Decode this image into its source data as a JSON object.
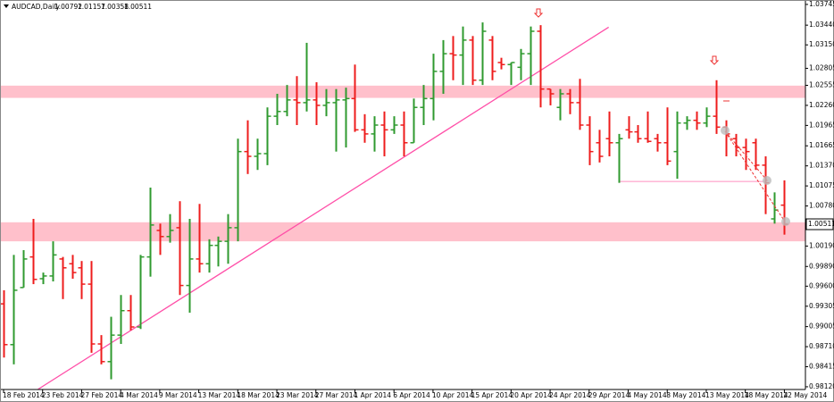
{
  "chart_data": {
    "type": "ohlc",
    "title": "AUDCAD,Daily",
    "categories": [
      "18 Feb 2014",
      null,
      null,
      null,
      "23 Feb 2014",
      null,
      null,
      null,
      "27 Feb 2014",
      null,
      null,
      null,
      "4 Mar 2014",
      null,
      null,
      null,
      "9 Mar 2014",
      null,
      null,
      null,
      "13 Mar 2014",
      null,
      null,
      null,
      "18 Mar 2014",
      null,
      null,
      null,
      "23 Mar 2014",
      null,
      null,
      null,
      "27 Mar 2014",
      null,
      null,
      null,
      "1 Apr 2014",
      null,
      null,
      null,
      "6 Apr 2014",
      null,
      null,
      null,
      "10 Apr 2014",
      null,
      null,
      null,
      "15 Apr 2014",
      null,
      null,
      null,
      "20 Apr 2014",
      null,
      null,
      null,
      "24 Apr 2014",
      null,
      null,
      null,
      "29 Apr 2014",
      null,
      null,
      null,
      "4 May 2014",
      null,
      null,
      null,
      "8 May 2014",
      null,
      null,
      null,
      "13 May 2014",
      null,
      null,
      null,
      "18 May 2014",
      null,
      null,
      null,
      "22 May 2014"
    ],
    "open": [
      0.9934,
      0.9874,
      0.9958,
      1.0003,
      0.9971,
      0.9975,
      1.0,
      0.9993,
      0.9987,
      0.9963,
      0.9875,
      0.9849,
      0.9888,
      0.9924,
      0.99,
      1.0003,
      1.0042,
      1.0033,
      1.0046,
      0.9961,
      1.0,
      0.9993,
      1.002,
      1.0026,
      1.0046,
      1.0158,
      1.0151,
      1.0155,
      1.021,
      1.0217,
      1.0234,
      1.023,
      1.0234,
      1.0226,
      1.023,
      1.0234,
      1.0236,
      1.019,
      1.0184,
      1.0197,
      1.019,
      1.0197,
      1.0171,
      1.0223,
      1.0236,
      1.0276,
      1.0302,
      1.03,
      1.0322,
      1.0263,
      1.0322,
      1.0289,
      1.0286,
      1.0282,
      1.0302,
      1.0335,
      1.025,
      1.0223,
      1.0243,
      1.023,
      1.0197,
      1.0171,
      1.0177,
      1.0171,
      1.019,
      1.0187,
      1.0177,
      1.0177,
      1.0171,
      1.0158,
      1.02,
      1.0204,
      1.02,
      1.021,
      1.0194,
      1.0177,
      1.0164,
      1.0171,
      1.0138,
      1.0059,
      1.00792
    ],
    "high": [
      0.9954,
      1.0006,
      1.0013,
      1.0059,
      0.998,
      1.0026,
      1.0003,
      1.0006,
      0.9997,
      0.9997,
      0.9888,
      0.9915,
      0.9947,
      0.9947,
      1.0006,
      1.0105,
      1.0052,
      1.0066,
      1.0085,
      1.0059,
      1.0081,
      1.0029,
      1.0033,
      1.0066,
      1.0177,
      1.0204,
      1.0177,
      1.0223,
      1.0243,
      1.0256,
      1.0269,
      1.0318,
      1.026,
      1.025,
      1.025,
      1.0252,
      1.0286,
      1.0213,
      1.021,
      1.0217,
      1.021,
      1.0217,
      1.0236,
      1.0256,
      1.0302,
      1.0322,
      1.0328,
      1.0342,
      1.0328,
      1.0348,
      1.0328,
      1.0296,
      1.0289,
      1.0309,
      1.0342,
      1.0344,
      1.025,
      1.025,
      1.025,
      1.0265,
      1.021,
      1.019,
      1.0217,
      1.0184,
      1.021,
      1.0197,
      1.0217,
      1.0184,
      1.0223,
      1.0217,
      1.021,
      1.0217,
      1.0223,
      1.0263,
      1.0204,
      1.0184,
      1.0177,
      1.0177,
      1.0151,
      1.0098,
      1.01157
    ],
    "low": [
      0.9855,
      0.9845,
      0.9958,
      0.9963,
      0.9963,
      0.9967,
      0.9941,
      0.9971,
      0.9941,
      0.9862,
      0.9845,
      0.9823,
      0.9875,
      0.9895,
      0.9897,
      0.9974,
      1.0006,
      1.0024,
      0.9947,
      0.9921,
      0.998,
      0.998,
      0.9989,
      0.9993,
      1.0026,
      1.0125,
      1.0131,
      1.0138,
      1.0197,
      1.021,
      1.0197,
      1.0217,
      1.0197,
      1.021,
      1.0158,
      1.0164,
      1.0187,
      1.0171,
      1.0158,
      1.0151,
      1.0184,
      1.0151,
      1.0171,
      1.0197,
      1.0204,
      1.0243,
      1.0263,
      1.0256,
      1.0256,
      1.0256,
      1.0263,
      1.0279,
      1.0256,
      1.0263,
      1.0256,
      1.0223,
      1.0226,
      1.0204,
      1.0213,
      1.019,
      1.0138,
      1.0142,
      1.0151,
      1.0112,
      1.0177,
      1.0171,
      1.0171,
      1.0158,
      1.0138,
      1.0118,
      1.019,
      1.019,
      1.0194,
      1.0184,
      1.0151,
      1.0151,
      1.0131,
      1.0131,
      1.0066,
      1.0052,
      1.00358
    ],
    "close": [
      0.9874,
      0.9954,
      1.0,
      0.997,
      0.9975,
      1.0006,
      0.9987,
      0.998,
      0.9963,
      0.9875,
      0.9849,
      0.9888,
      0.9924,
      0.99,
      1.0003,
      1.005,
      1.0033,
      1.0042,
      0.9961,
      1.0,
      0.9993,
      1.002,
      1.0026,
      1.0046,
      1.0158,
      1.0151,
      1.0155,
      1.021,
      1.0217,
      1.0234,
      1.023,
      1.0234,
      1.0226,
      1.023,
      1.0234,
      1.0236,
      1.019,
      1.0184,
      1.0197,
      1.019,
      1.0197,
      1.0171,
      1.0223,
      1.0236,
      1.0276,
      1.0302,
      1.03,
      1.0322,
      1.0263,
      1.0335,
      1.0276,
      1.0286,
      1.0289,
      1.0302,
      1.0335,
      1.025,
      1.0243,
      1.0243,
      1.023,
      1.0197,
      1.0158,
      1.0151,
      1.0171,
      1.0177,
      1.0187,
      1.0177,
      1.0173,
      1.0171,
      1.0144,
      1.02,
      1.0204,
      1.02,
      1.021,
      1.0194,
      1.0184,
      1.0164,
      1.0158,
      1.0138,
      1.0112,
      1.0072,
      1.00511
    ],
    "up_color": "#2f9a2f",
    "down_color": "#ee1c1c",
    "ylim": [
      0.9808,
      1.0381
    ],
    "yticks": [
      1.03745,
      {
        "value": 1.0344,
        "label": "1.03440"
      },
      {
        "value": 1.0315,
        "label": "1.03150"
      },
      1.02805,
      1.02555,
      {
        "value": 1.0226,
        "label": "1.02260"
      },
      1.01965,
      1.01665,
      {
        "value": 1.0137,
        "label": "1.01370"
      },
      1.01075,
      {
        "value": 1.0078,
        "label": "1.00780"
      },
      {
        "value": 1.0019,
        "label": "1.00190"
      },
      {
        "value": 0.9989,
        "label": "0.99890"
      },
      {
        "value": 0.996,
        "label": "0.99600"
      },
      0.99305,
      0.99005,
      {
        "value": 0.9871,
        "label": "0.98710"
      },
      0.98415,
      {
        "value": 0.9812,
        "label": "0.98120"
      }
    ],
    "zones": [
      [
        1.0237,
        1.0255
      ],
      [
        1.0026,
        1.0054
      ]
    ],
    "zone_color": "#ffc0cb",
    "trendline": {
      "x": [
        3.5,
        62
      ],
      "y": [
        0.9808,
        1.0341
      ],
      "color": "#ff4fa8"
    },
    "hline": {
      "x": [
        63,
        78
      ],
      "y": 1.0114,
      "color": "#ff8fbf"
    },
    "grid": false
  }
}
